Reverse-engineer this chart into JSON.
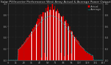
{
  "title": "Solar PV/Inverter Performance West Array Actual & Average Power Output",
  "bg_color": "#1a1a1a",
  "plot_bg_color": "#1a1a1a",
  "grid_color": "#555555",
  "bar_color": "#cc0000",
  "avg_line_color": "#00cccc",
  "spike_color": "#ffffff",
  "title_color": "#cccccc",
  "tick_color": "#aaaaaa",
  "num_points": 144,
  "peak_index": 65,
  "peak_value": 1.0,
  "avg_peak": 0.78,
  "ylim": [
    0,
    1.0
  ],
  "xlim": [
    0,
    143
  ],
  "title_fontsize": 3.2,
  "tick_fontsize": 2.5,
  "legend_fontsize": 2.8,
  "bar_width": 1.0
}
